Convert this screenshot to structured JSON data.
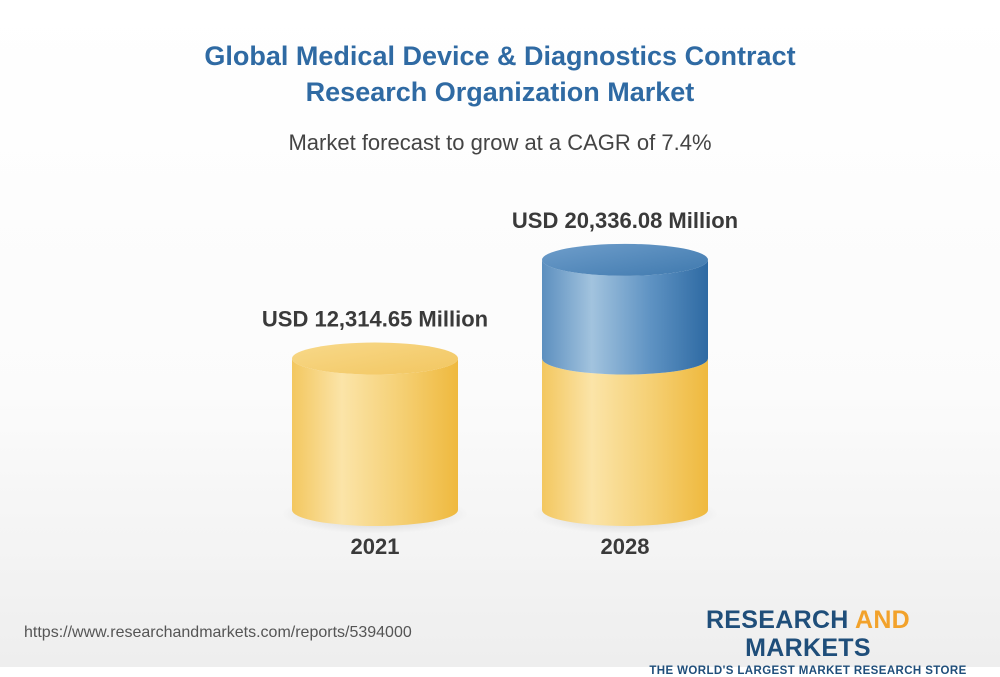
{
  "header": {
    "title_line1": "Global Medical Device & Diagnostics Contract",
    "title_line2": "Research Organization Market",
    "subtitle": "Market forecast to grow at a CAGR of 7.4%"
  },
  "chart_data": {
    "type": "bar",
    "style": "3d-cylinder",
    "title": "Global Medical Device & Diagnostics Contract Research Organization Market",
    "subtitle": "Market forecast to grow at a CAGR of 7.4%",
    "categories": [
      "2021",
      "2028"
    ],
    "values": [
      12314.65,
      20336.08
    ],
    "units": "USD Million",
    "data_labels": [
      "USD 12,314.65 Million",
      "USD 20,336.08 Million"
    ],
    "cagr": "7.4%",
    "colors": {
      "base": "#f2c660",
      "base_light": "#fbe3a5",
      "growth": "#3c77ab",
      "growth_light": "#9ec0dc"
    }
  },
  "footer": {
    "source_url": "https://www.researchandmarkets.com/reports/5394000",
    "brand_part1": "RESEARCH ",
    "brand_part2": "AND",
    "brand_part3": " MARKETS",
    "brand_tagline": "THE WORLD'S LARGEST MARKET RESEARCH STORE"
  }
}
